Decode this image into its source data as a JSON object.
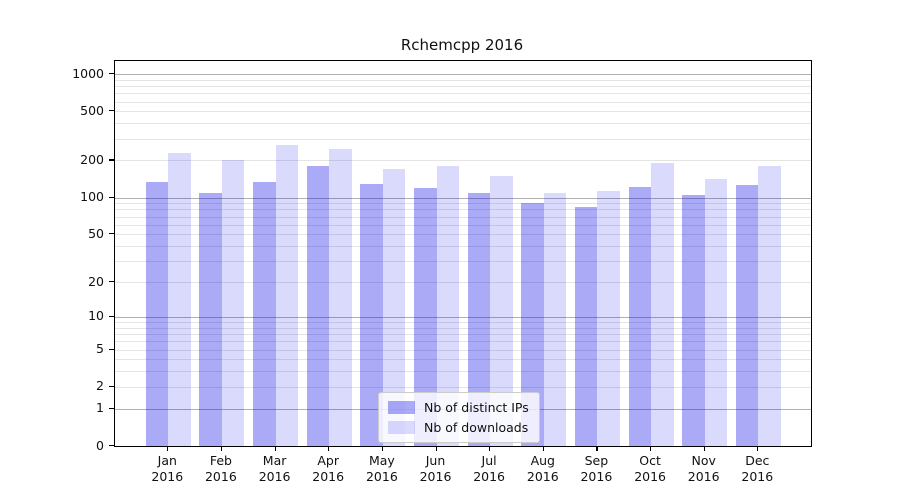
{
  "title": "Rchemcpp 2016",
  "chart_data": {
    "type": "bar",
    "title": "Rchemcpp 2016",
    "yscale": "log1p",
    "ylim": [
      0,
      1273
    ],
    "grid": true,
    "legend_position": "lower center",
    "x_ticks": [
      {
        "line1": "Jan",
        "line2": "2016"
      },
      {
        "line1": "Feb",
        "line2": "2016"
      },
      {
        "line1": "Mar",
        "line2": "2016"
      },
      {
        "line1": "Apr",
        "line2": "2016"
      },
      {
        "line1": "May",
        "line2": "2016"
      },
      {
        "line1": "Jun",
        "line2": "2016"
      },
      {
        "line1": "Jul",
        "line2": "2016"
      },
      {
        "line1": "Aug",
        "line2": "2016"
      },
      {
        "line1": "Sep",
        "line2": "2016"
      },
      {
        "line1": "Oct",
        "line2": "2016"
      },
      {
        "line1": "Nov",
        "line2": "2016"
      },
      {
        "line1": "Dec",
        "line2": "2016"
      }
    ],
    "categories": [
      "Jan 2016",
      "Feb 2016",
      "Mar 2016",
      "Apr 2016",
      "May 2016",
      "Jun 2016",
      "Jul 2016",
      "Aug 2016",
      "Sep 2016",
      "Oct 2016",
      "Nov 2016",
      "Dec 2016"
    ],
    "series": [
      {
        "name": "Nb of distinct IPs",
        "values": [
          134,
          108,
          134,
          180,
          129,
          120,
          108,
          91,
          83,
          122,
          104,
          126
        ]
      },
      {
        "name": "Nb of downloads",
        "values": [
          230,
          200,
          265,
          250,
          171,
          179,
          149,
          109,
          114,
          191,
          142,
          180
        ]
      }
    ],
    "y_ticks": [
      {
        "label": "1000",
        "value": 1000
      },
      {
        "label": "500",
        "value": 500
      },
      {
        "label": "200",
        "value": 200
      },
      {
        "label": "100",
        "value": 100
      },
      {
        "label": "50",
        "value": 50
      },
      {
        "label": "20",
        "value": 20
      },
      {
        "label": "10",
        "value": 10
      },
      {
        "label": "5",
        "value": 5
      },
      {
        "label": "2",
        "value": 2
      },
      {
        "label": "1",
        "value": 1
      },
      {
        "label": "0",
        "value": 0
      }
    ],
    "major_gridline_values": [
      1,
      10,
      100,
      1000
    ],
    "minor_gridline_values": [
      2,
      3,
      4,
      5,
      6,
      7,
      8,
      9,
      20,
      30,
      40,
      50,
      60,
      70,
      80,
      90,
      200,
      300,
      400,
      500,
      600,
      700,
      800,
      900
    ]
  },
  "colors": {
    "bar_distinct_ips": "#a8a8f2",
    "bar_downloads": "#dadaf8",
    "grid_major": "#b0b0b0",
    "grid_minor": "#e4e4e4",
    "spine": "#000000",
    "background": "#ffffff"
  }
}
